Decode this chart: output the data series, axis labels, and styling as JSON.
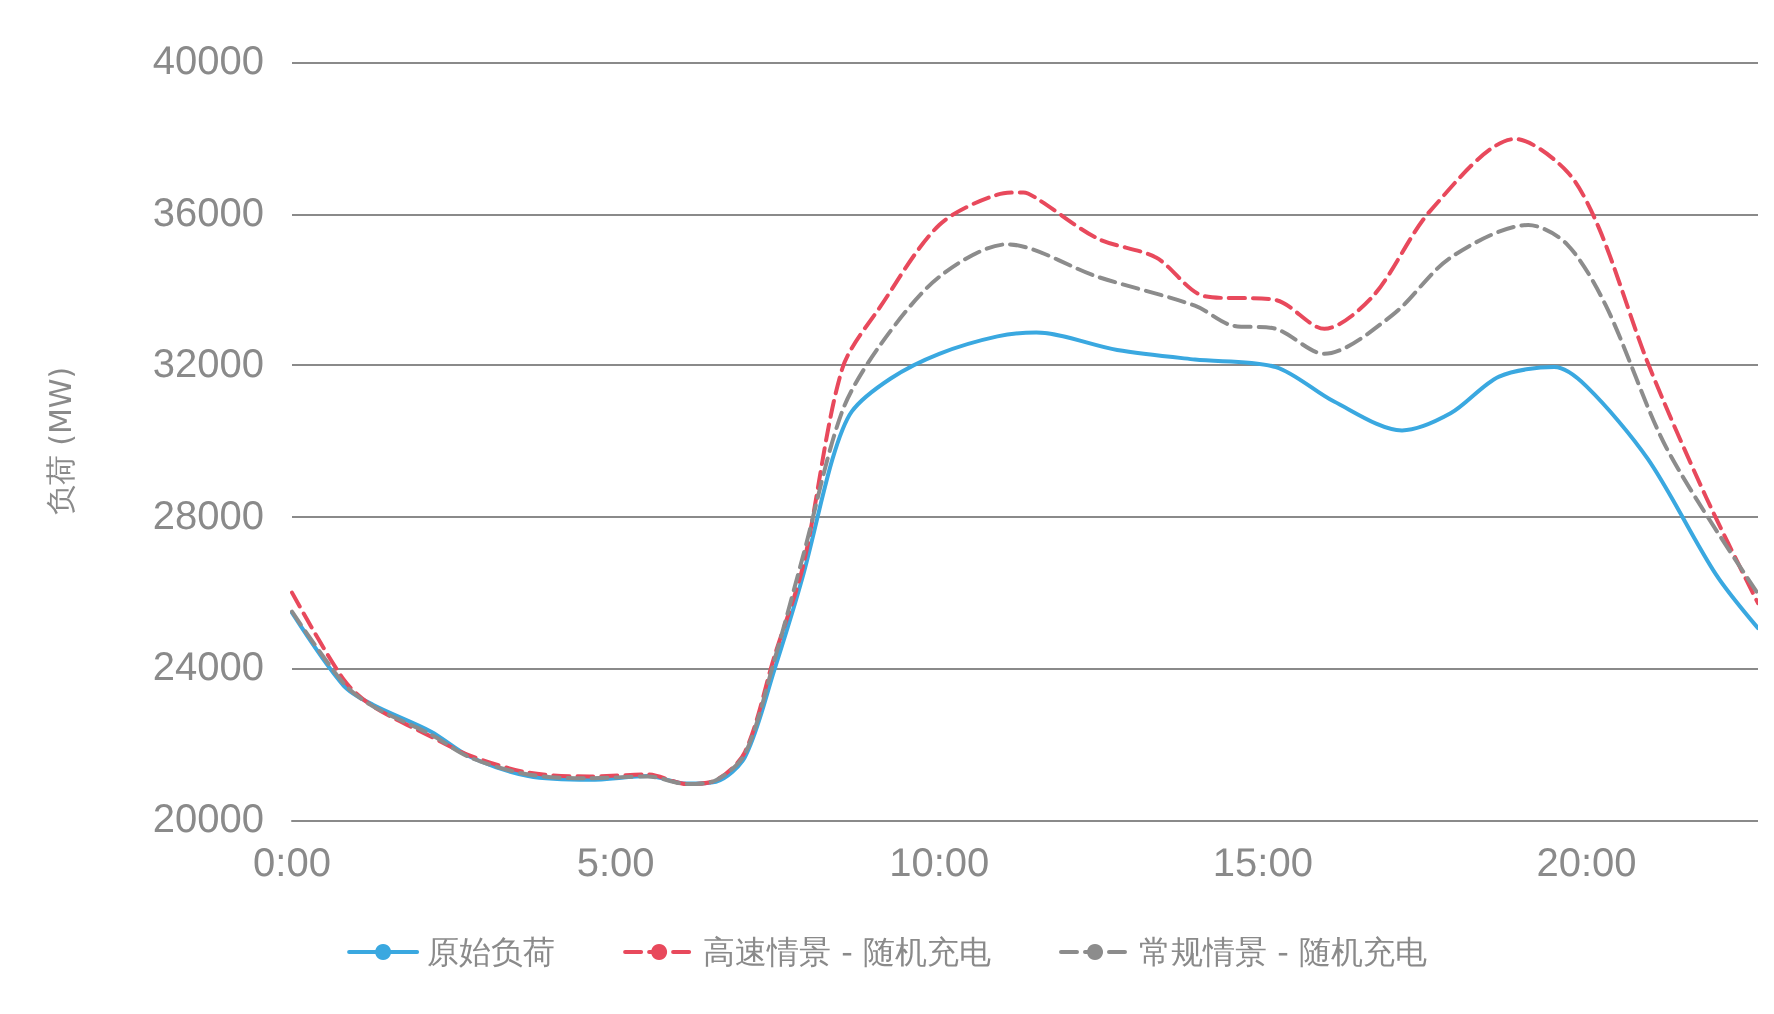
{
  "chart_data": {
    "type": "line",
    "ylabel": "负荷 (MW)",
    "xlim": [
      0,
      22.65
    ],
    "xticks": [
      {
        "value": 0,
        "label": "0:00"
      },
      {
        "value": 5,
        "label": "5:00"
      },
      {
        "value": 10,
        "label": "10:00"
      },
      {
        "value": 15,
        "label": "15:00"
      },
      {
        "value": 20,
        "label": "20:00"
      }
    ],
    "ylim": [
      20000,
      40000
    ],
    "yticks": [
      20000,
      24000,
      28000,
      32000,
      36000,
      40000
    ],
    "grid": "y",
    "legend": "bottom",
    "marker": "none",
    "series": [
      {
        "name": "原始负荷",
        "color": "#3aa8e0",
        "line_style": "solid",
        "x": [
          0,
          0.8,
          1.25,
          2.15,
          2.75,
          3.65,
          4.6,
          5.5,
          6.1,
          6.55,
          7.0,
          7.45,
          7.9,
          8.35,
          8.65,
          9.25,
          10.0,
          10.9,
          11.5,
          12.75,
          13.95,
          15.2,
          16.1,
          17.15,
          17.9,
          18.65,
          19.5,
          20.0,
          20.95,
          22.0,
          22.65
        ],
        "values": [
          25470,
          23540,
          23040,
          22330,
          21670,
          21160,
          21060,
          21160,
          20960,
          21010,
          21670,
          23950,
          26480,
          29520,
          30780,
          31650,
          32300,
          32760,
          32860,
          32400,
          32150,
          31950,
          31040,
          30280,
          30730,
          31700,
          31950,
          31440,
          29520,
          26480,
          25060
        ]
      },
      {
        "name": "高速情景 - 随机充电",
        "color": "#e8495c",
        "line_style": "dashed",
        "x": [
          0,
          0.8,
          1.25,
          2.15,
          2.75,
          3.65,
          4.6,
          5.5,
          6.1,
          6.55,
          7.0,
          7.45,
          7.9,
          8.5,
          9.1,
          10.0,
          10.9,
          11.3,
          11.55,
          12.45,
          13.35,
          14.1,
          15.2,
          15.95,
          16.7,
          17.6,
          18.9,
          19.7,
          20.2,
          20.95,
          21.85,
          22.65
        ],
        "values": [
          26000,
          23700,
          23000,
          22200,
          21700,
          21250,
          21150,
          21200,
          20950,
          21050,
          21800,
          24300,
          26730,
          31900,
          33570,
          35700,
          36500,
          36560,
          36350,
          35340,
          34840,
          33820,
          33720,
          32960,
          33820,
          36100,
          37970,
          37110,
          35590,
          32050,
          28510,
          25720
        ]
      },
      {
        "name": "常规情景 - 随机充电",
        "color": "#8c8c8c",
        "line_style": "dashed",
        "x": [
          0,
          0.8,
          1.25,
          2.15,
          2.75,
          3.65,
          4.6,
          5.5,
          6.1,
          6.55,
          7.0,
          7.45,
          7.9,
          8.5,
          9.1,
          10.0,
          11.05,
          12.45,
          13.95,
          14.5,
          15.2,
          15.95,
          17.0,
          17.9,
          19.1,
          19.7,
          20.3,
          21.25,
          22.65
        ],
        "values": [
          25500,
          23600,
          23000,
          22250,
          21650,
          21200,
          21100,
          21150,
          20950,
          21050,
          21750,
          24200,
          26990,
          30780,
          32560,
          34330,
          35190,
          34330,
          33570,
          33060,
          32960,
          32300,
          33320,
          34840,
          35700,
          35190,
          33570,
          29770,
          25970
        ]
      }
    ]
  }
}
